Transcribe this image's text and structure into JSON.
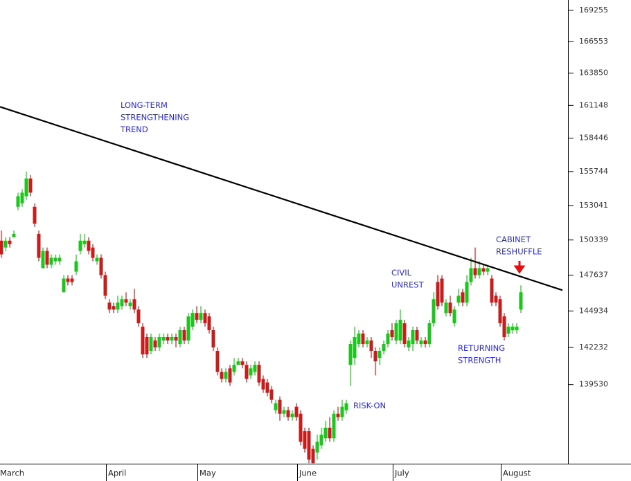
{
  "chart_data": {
    "type": "candlestick",
    "categories": [
      "March",
      null,
      null,
      null,
      null,
      null,
      null,
      null,
      null,
      null,
      null,
      null,
      null,
      null,
      null,
      null,
      null,
      null,
      null,
      null,
      null,
      null,
      null,
      null,
      null,
      null,
      "April",
      null,
      null,
      null,
      null,
      null,
      null,
      null,
      null,
      null,
      null,
      null,
      null,
      null,
      null,
      null,
      null,
      null,
      null,
      null,
      null,
      null,
      "May",
      null,
      null,
      null,
      null,
      null,
      null,
      null,
      null,
      null,
      null,
      null,
      null,
      null,
      null,
      null,
      null,
      null,
      null,
      null,
      null,
      null,
      null,
      null,
      "June",
      null,
      null,
      null,
      null,
      null,
      null,
      null,
      null,
      null,
      null,
      null,
      null,
      null,
      null,
      null,
      null,
      null,
      null,
      null,
      null,
      null,
      null,
      "July",
      null,
      null,
      null,
      null,
      null,
      null,
      null,
      null,
      null,
      null,
      null,
      null,
      null,
      null,
      null,
      null,
      null,
      null,
      null,
      null,
      null,
      null,
      null,
      null,
      null,
      "August",
      null,
      null,
      null,
      null
    ],
    "open": [
      150286,
      149756,
      150286,
      150551,
      152935,
      153210,
      153773,
      155181,
      152935,
      150815,
      148167,
      149491,
      148431,
      148696,
      148696,
      146337,
      147377,
      147377,
      147902,
      149491,
      150021,
      150286,
      149756,
      148696,
      148961,
      147637,
      145557,
      145297,
      145037,
      145297,
      145817,
      145297,
      145817,
      145037,
      143761,
      142996,
      141977,
      142741,
      142232,
      142741,
      142996,
      142741,
      142996,
      142486,
      143506,
      142741,
      143761,
      144781,
      144271,
      144781,
      144526,
      143506,
      141977,
      140447,
      139937,
      140702,
      140447,
      140957,
      141212,
      140957,
      140192,
      140447,
      140957,
      139937,
      139683,
      139184,
      137698,
      138441,
      137451,
      137698,
      137204,
      137946,
      137451,
      136214,
      136214,
      134976,
      134728,
      135224,
      135718,
      136461,
      135718,
      137451,
      137204,
      137698,
      140957,
      141467,
      142486,
      143251,
      142486,
      142741,
      141977,
      141467,
      141977,
      142486,
      143506,
      142741,
      142741,
      144016,
      142232,
      142486,
      143506,
      142486,
      142741,
      142486,
      144016,
      147117,
      147377,
      144781,
      145557,
      144016,
      145557,
      146337,
      145557,
      147117,
      148167,
      147637,
      148167,
      147902,
      147377,
      146077,
      145817,
      144526,
      143251,
      143506,
      143506,
      145037
    ],
    "high": [
      151080,
      150551,
      150551,
      151080,
      154057,
      154337,
      155744,
      155462,
      153210,
      151080,
      149756,
      149756,
      149226,
      149226,
      149226,
      147637,
      147637,
      147637,
      149226,
      150815,
      150815,
      150551,
      150021,
      149226,
      149226,
      147902,
      145817,
      145557,
      146077,
      146077,
      146337,
      145817,
      146597,
      145297,
      144016,
      143251,
      143251,
      142996,
      143251,
      143251,
      143251,
      143251,
      143251,
      143761,
      143761,
      144781,
      145037,
      145297,
      145297,
      145037,
      144781,
      143761,
      142232,
      140702,
      140702,
      140957,
      141467,
      141467,
      141467,
      141212,
      140957,
      141212,
      141212,
      140192,
      139937,
      139431,
      138441,
      138689,
      137946,
      137946,
      137698,
      138194,
      137698,
      136461,
      136461,
      135224,
      135966,
      136461,
      136956,
      137204,
      137698,
      137946,
      138441,
      138441,
      142741,
      143761,
      143506,
      143506,
      142996,
      142996,
      142232,
      142232,
      142741,
      143506,
      144016,
      144271,
      145037,
      144271,
      142996,
      143761,
      143761,
      142996,
      142996,
      144271,
      146337,
      147637,
      147637,
      145817,
      146077,
      145297,
      146597,
      146597,
      147637,
      148961,
      149756,
      148696,
      148431,
      148431,
      147637,
      146337,
      146077,
      144781,
      144016,
      144016,
      144016,
      146857
    ],
    "low": [
      148961,
      149491,
      149756,
      150551,
      152670,
      152935,
      153491,
      153773,
      151345,
      148696,
      148167,
      148167,
      148167,
      148431,
      148431,
      146337,
      146857,
      146857,
      147637,
      149226,
      149756,
      149226,
      148696,
      148431,
      147377,
      145817,
      144781,
      144781,
      144781,
      145037,
      145297,
      145037,
      144781,
      143761,
      141467,
      141467,
      141722,
      141977,
      141977,
      142486,
      142486,
      142486,
      142232,
      142232,
      142486,
      142486,
      143506,
      144016,
      144016,
      143761,
      143251,
      141977,
      140192,
      139683,
      139683,
      139431,
      140192,
      140957,
      140702,
      139683,
      139937,
      140192,
      139431,
      138936,
      138689,
      138194,
      137451,
      136956,
      137204,
      136956,
      136956,
      136956,
      135224,
      134728,
      133986,
      133986,
      134234,
      134976,
      135471,
      135471,
      135471,
      136956,
      136956,
      137451,
      139431,
      140957,
      142232,
      142232,
      142232,
      141467,
      140192,
      140957,
      141722,
      142232,
      142741,
      142486,
      142486,
      142232,
      141977,
      141977,
      142486,
      142232,
      142232,
      142232,
      143761,
      145037,
      145297,
      144526,
      144526,
      143761,
      145297,
      145297,
      145297,
      146857,
      147377,
      147377,
      147637,
      147637,
      145297,
      145297,
      143761,
      142741,
      142996,
      143251,
      143251,
      144781
    ],
    "close": [
      149226,
      150286,
      150021,
      150815,
      153773,
      154057,
      155181,
      154057,
      151610,
      148961,
      149491,
      148431,
      148961,
      148961,
      148961,
      147377,
      147117,
      147117,
      148696,
      150286,
      150286,
      149491,
      148961,
      148961,
      147637,
      146077,
      145037,
      145037,
      145557,
      145817,
      145557,
      145557,
      145037,
      144016,
      141722,
      141722,
      142996,
      142232,
      142996,
      142996,
      142741,
      142996,
      142741,
      143506,
      142741,
      144526,
      144781,
      144271,
      144781,
      144016,
      143506,
      142232,
      140447,
      139937,
      140447,
      139683,
      140957,
      141212,
      140957,
      139937,
      140702,
      140957,
      139683,
      139184,
      138936,
      138441,
      138194,
      137451,
      137698,
      137204,
      137451,
      137204,
      135471,
      134976,
      134234,
      133986,
      135471,
      135966,
      136461,
      135718,
      137451,
      137204,
      137946,
      138194,
      142486,
      142996,
      143251,
      142486,
      142741,
      141977,
      141212,
      141977,
      142486,
      143251,
      142996,
      144016,
      144271,
      142486,
      142741,
      143506,
      142741,
      142741,
      142486,
      144016,
      145817,
      145297,
      145557,
      145557,
      144781,
      145037,
      146077,
      145557,
      147117,
      148167,
      147637,
      148167,
      147902,
      148167,
      145557,
      145557,
      144016,
      142996,
      143761,
      143761,
      143761,
      146337
    ],
    "up_color": "#1fc41f",
    "down_color": "#c41f1f",
    "ylim": [
      133950,
      170155
    ],
    "log_scale": true,
    "yticks": [
      139530,
      142232,
      144934,
      147637,
      150339,
      153041,
      155744,
      158446,
      161148,
      163850,
      166553,
      169255
    ],
    "trend_line": {
      "x": [
        -0.33,
        135.0
      ],
      "y": [
        161031,
        146495
      ],
      "color": "#000000"
    },
    "annotations": [
      {
        "text": [
          "LONG-TERM",
          "STRENGTHENING",
          "TREND"
        ],
        "color": "#2b2bd9"
      },
      {
        "text": [
          "CIVIL",
          "UNREST"
        ],
        "color": "#2b2bd9"
      },
      {
        "text": [
          "CABINET",
          "RESHUFFLE"
        ],
        "color": "#2b2bd9"
      },
      {
        "text": [
          "RETURNING",
          "STRENGTH"
        ],
        "color": "#2b2bd9"
      },
      {
        "text": [
          "RISK-ON"
        ],
        "color": "#2b2bd9"
      }
    ]
  }
}
